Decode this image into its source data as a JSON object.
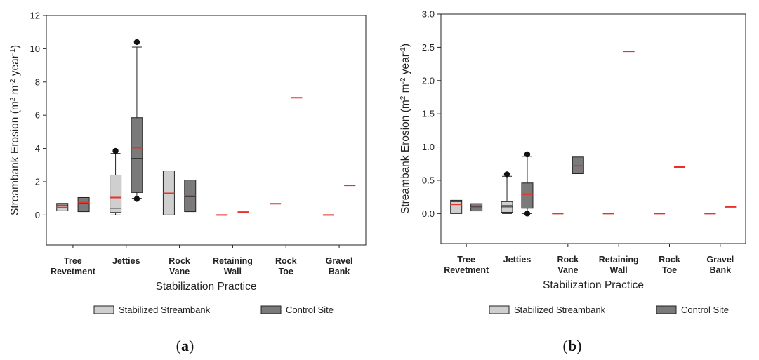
{
  "chart_data": [
    {
      "type": "box",
      "panel_label_parts": [
        "(",
        "a",
        ")"
      ],
      "ylabel_parts": {
        "base": "Streambank Erosion (m",
        "sup1": "2",
        "mid": " m",
        "sup2": "-2",
        "mid2": " year",
        "sup3": "-1",
        "end": ")"
      },
      "xlabel": "Stabilization Practice",
      "ylim": [
        -1.8,
        12
      ],
      "yticks": [
        "0",
        "2",
        "4",
        "6",
        "8",
        "10",
        "12"
      ],
      "categories": [
        [
          "Tree",
          "Revetment"
        ],
        [
          "Jetties"
        ],
        [
          "Rock",
          "Vane"
        ],
        [
          "Retaining",
          "Wall"
        ],
        [
          "Rock",
          "Toe"
        ],
        [
          "Gravel",
          "Bank"
        ]
      ],
      "series": [
        {
          "name": "Stabilized Streambank",
          "color": "#cfcfcf",
          "boxes": [
            {
              "min": 0.25,
              "q1": 0.25,
              "median": 0.6,
              "mean": 0.45,
              "q3": 0.7,
              "max": 0.7,
              "outliers": []
            },
            {
              "min": 0.0,
              "q1": 0.15,
              "median": 0.4,
              "mean": 1.05,
              "q3": 2.4,
              "max": 3.7,
              "outliers": [
                3.85
              ]
            },
            {
              "min": 0.0,
              "q1": 0.0,
              "median": 1.3,
              "mean": 1.3,
              "q3": 2.65,
              "max": 2.65,
              "outliers": []
            },
            {
              "min": 0.0,
              "q1": 0.0,
              "median": 0.0,
              "mean": 0.0,
              "q3": 0.0,
              "max": 0.0,
              "outliers": []
            },
            {
              "min": 0.68,
              "q1": 0.68,
              "median": 0.68,
              "mean": 0.68,
              "q3": 0.68,
              "max": 0.68,
              "outliers": []
            },
            {
              "min": 0.0,
              "q1": 0.0,
              "median": 0.0,
              "mean": 0.0,
              "q3": 0.0,
              "max": 0.0,
              "outliers": []
            }
          ]
        },
        {
          "name": "Control Site",
          "color": "#7a7a7a",
          "boxes": [
            {
              "min": 0.2,
              "q1": 0.2,
              "median": 0.7,
              "mean": 0.75,
              "q3": 1.05,
              "max": 1.05,
              "outliers": []
            },
            {
              "min": 1.0,
              "q1": 1.35,
              "median": 3.4,
              "mean": 4.05,
              "q3": 5.85,
              "max": 10.1,
              "outliers": [
                10.4,
                0.97
              ]
            },
            {
              "min": 0.2,
              "q1": 0.2,
              "median": 1.1,
              "mean": 1.15,
              "q3": 2.1,
              "max": 2.1,
              "outliers": []
            },
            {
              "min": 0.18,
              "q1": 0.18,
              "median": 0.18,
              "mean": 0.18,
              "q3": 0.18,
              "max": 0.18,
              "outliers": []
            },
            {
              "min": 7.05,
              "q1": 7.05,
              "median": 7.05,
              "mean": 7.05,
              "q3": 7.05,
              "max": 7.05,
              "outliers": []
            },
            {
              "min": 1.78,
              "q1": 1.78,
              "median": 1.78,
              "mean": 1.78,
              "q3": 1.78,
              "max": 1.78,
              "outliers": []
            }
          ]
        }
      ],
      "mean_color": "#e8312a"
    },
    {
      "type": "box",
      "panel_label_parts": [
        "(",
        "b",
        ")"
      ],
      "ylabel_parts": {
        "base": "Streambank Erosion (m",
        "sup1": "2",
        "mid": " m",
        "sup2": "-2",
        "mid2": " year",
        "sup3": "-1",
        "end": ")"
      },
      "xlabel": "Stabilization Practice",
      "ylim": [
        -0.45,
        3.0
      ],
      "yticks": [
        "0.0",
        "0.5",
        "1.0",
        "1.5",
        "2.0",
        "2.5",
        "3.0"
      ],
      "categories": [
        [
          "Tree",
          "Revetment"
        ],
        [
          "Jetties"
        ],
        [
          "Rock",
          "Vane"
        ],
        [
          "Retaining",
          "Wall"
        ],
        [
          "Rock",
          "Toe"
        ],
        [
          "Gravel",
          "Bank"
        ]
      ],
      "series": [
        {
          "name": "Stabilized Streambank",
          "color": "#cfcfcf",
          "boxes": [
            {
              "min": 0.0,
              "q1": 0.0,
              "median": 0.18,
              "mean": 0.14,
              "q3": 0.2,
              "max": 0.2,
              "outliers": []
            },
            {
              "min": 0.0,
              "q1": 0.02,
              "median": 0.1,
              "mean": 0.12,
              "q3": 0.18,
              "max": 0.56,
              "outliers": [
                0.59
              ]
            },
            {
              "min": 0.0,
              "q1": 0.0,
              "median": 0.0,
              "mean": 0.0,
              "q3": 0.0,
              "max": 0.0,
              "outliers": []
            },
            {
              "min": 0.0,
              "q1": 0.0,
              "median": 0.0,
              "mean": 0.0,
              "q3": 0.0,
              "max": 0.0,
              "outliers": []
            },
            {
              "min": 0.0,
              "q1": 0.0,
              "median": 0.0,
              "mean": 0.0,
              "q3": 0.0,
              "max": 0.0,
              "outliers": []
            },
            {
              "min": 0.0,
              "q1": 0.0,
              "median": 0.0,
              "mean": 0.0,
              "q3": 0.0,
              "max": 0.0,
              "outliers": []
            }
          ]
        },
        {
          "name": "Control Site",
          "color": "#7a7a7a",
          "boxes": [
            {
              "min": 0.04,
              "q1": 0.04,
              "median": 0.1,
              "mean": 0.09,
              "q3": 0.15,
              "max": 0.15,
              "outliers": []
            },
            {
              "min": 0.0,
              "q1": 0.08,
              "median": 0.22,
              "mean": 0.29,
              "q3": 0.46,
              "max": 0.86,
              "outliers": [
                0.89,
                0.0
              ]
            },
            {
              "min": 0.6,
              "q1": 0.6,
              "median": 0.72,
              "mean": 0.72,
              "q3": 0.85,
              "max": 0.85,
              "outliers": []
            },
            {
              "min": 2.44,
              "q1": 2.44,
              "median": 2.44,
              "mean": 2.44,
              "q3": 2.44,
              "max": 2.44,
              "outliers": []
            },
            {
              "min": 0.7,
              "q1": 0.7,
              "median": 0.7,
              "mean": 0.7,
              "q3": 0.7,
              "max": 0.7,
              "outliers": []
            },
            {
              "min": 0.1,
              "q1": 0.1,
              "median": 0.1,
              "mean": 0.1,
              "q3": 0.1,
              "max": 0.1,
              "outliers": []
            }
          ]
        }
      ],
      "mean_color": "#e8312a"
    }
  ]
}
